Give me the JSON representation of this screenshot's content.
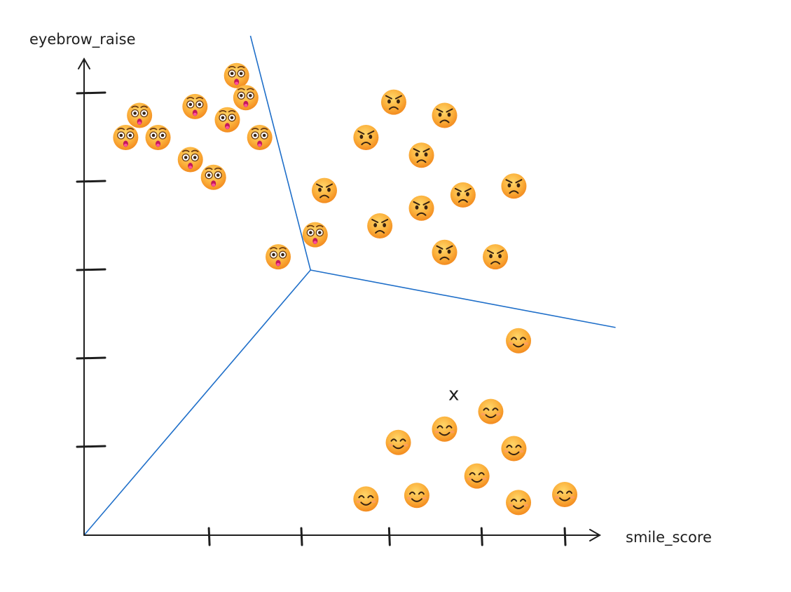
{
  "chart_data": {
    "type": "scatter",
    "xlabel": "smile_score",
    "ylabel": "eyebrow_raise",
    "xlim": [
      0,
      6
    ],
    "ylim": [
      0,
      5
    ],
    "x_ticks": [
      1.35,
      2.35,
      3.3,
      4.3,
      5.2
    ],
    "y_ticks": [
      1,
      2,
      3,
      4,
      5
    ],
    "grid": false,
    "legend": "none",
    "series": [
      {
        "icon": "flushed-face-icon",
        "points": [
          [
            0.45,
            4.5
          ],
          [
            0.8,
            4.5
          ],
          [
            0.6,
            4.75
          ],
          [
            1.15,
            4.25
          ],
          [
            1.2,
            4.85
          ],
          [
            1.4,
            4.05
          ],
          [
            1.55,
            4.7
          ],
          [
            1.65,
            5.2
          ],
          [
            1.9,
            4.5
          ],
          [
            1.75,
            4.95
          ],
          [
            2.5,
            3.4
          ],
          [
            2.1,
            3.15
          ]
        ]
      },
      {
        "icon": "angry-face-icon",
        "points": [
          [
            3.35,
            4.9
          ],
          [
            3.05,
            4.5
          ],
          [
            3.9,
            4.75
          ],
          [
            3.65,
            4.3
          ],
          [
            2.6,
            3.9
          ],
          [
            3.65,
            3.7
          ],
          [
            4.1,
            3.85
          ],
          [
            4.65,
            3.95
          ],
          [
            3.2,
            3.5
          ],
          [
            3.9,
            3.2
          ],
          [
            4.45,
            3.15
          ]
        ]
      },
      {
        "icon": "smiling-face-icon",
        "points": [
          [
            4.7,
            2.2
          ],
          [
            4.4,
            1.4
          ],
          [
            3.9,
            1.2
          ],
          [
            3.4,
            1.05
          ],
          [
            4.65,
            0.98
          ],
          [
            4.25,
            0.67
          ],
          [
            3.6,
            0.45
          ],
          [
            3.05,
            0.41
          ],
          [
            5.2,
            0.46
          ],
          [
            4.7,
            0.37
          ]
        ]
      }
    ],
    "query_point": {
      "label": "x",
      "x": 4,
      "y": 1.6
    },
    "decision_boundaries": {
      "center": [
        2.45,
        3.0
      ],
      "rays_to": [
        [
          1.8,
          5.65
        ],
        [
          5.75,
          2.35
        ],
        [
          0,
          0
        ]
      ]
    }
  },
  "colors": {
    "boundary": "#1f6fc9",
    "axis": "#1e1e1e",
    "emoji_fill": "#fbb03b"
  }
}
